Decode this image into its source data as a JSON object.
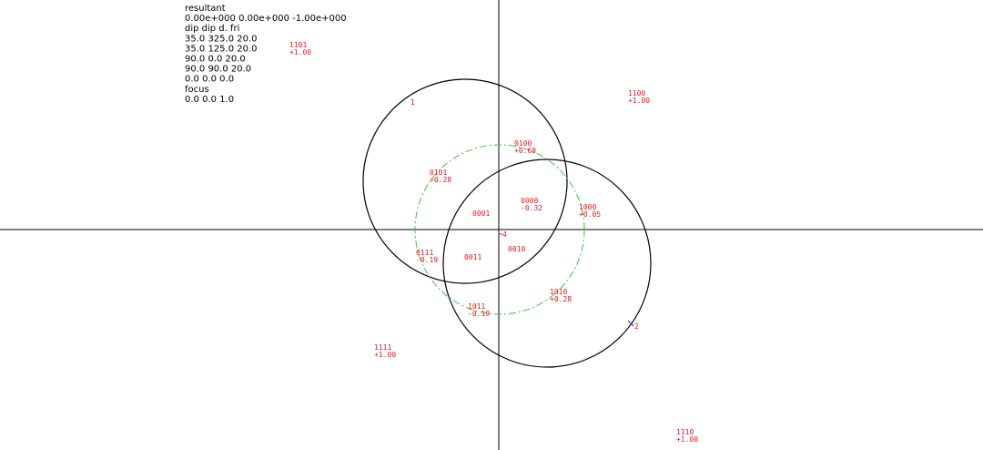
{
  "info": [
    "resultant",
    "0.00e+000 0.00e+000 -1.00e+000",
    "dip   dip d.  fri",
    "35.0 325.0 20.0",
    "35.0 125.0 20.0",
    "90.0 0.0 20.0",
    "90.0 90.0 20.0",
    "0.0 0.0 0.0",
    "focus",
    "0.0  0.0  1.0"
  ],
  "poles": [
    "1",
    "2",
    "4"
  ],
  "regions": [
    {
      "code": "1101",
      "value": "+1.00"
    },
    {
      "code": "1100",
      "value": "+1.00"
    },
    {
      "code": "0100",
      "value": "+0.68"
    },
    {
      "code": "0101",
      "value": "+0.28"
    },
    {
      "code": "0000",
      "value": "-0.32"
    },
    {
      "code": "0001"
    },
    {
      "code": "1000",
      "value": "+0.05"
    },
    {
      "code": "0111",
      "value": "-0.19"
    },
    {
      "code": "0011"
    },
    {
      "code": "0010"
    },
    {
      "code": "1010",
      "value": "+0.28"
    },
    {
      "code": "1011",
      "value": "-0.19"
    },
    {
      "code": "1111",
      "value": "+1.00"
    },
    {
      "code": "1110",
      "value": "+1.00"
    }
  ]
}
